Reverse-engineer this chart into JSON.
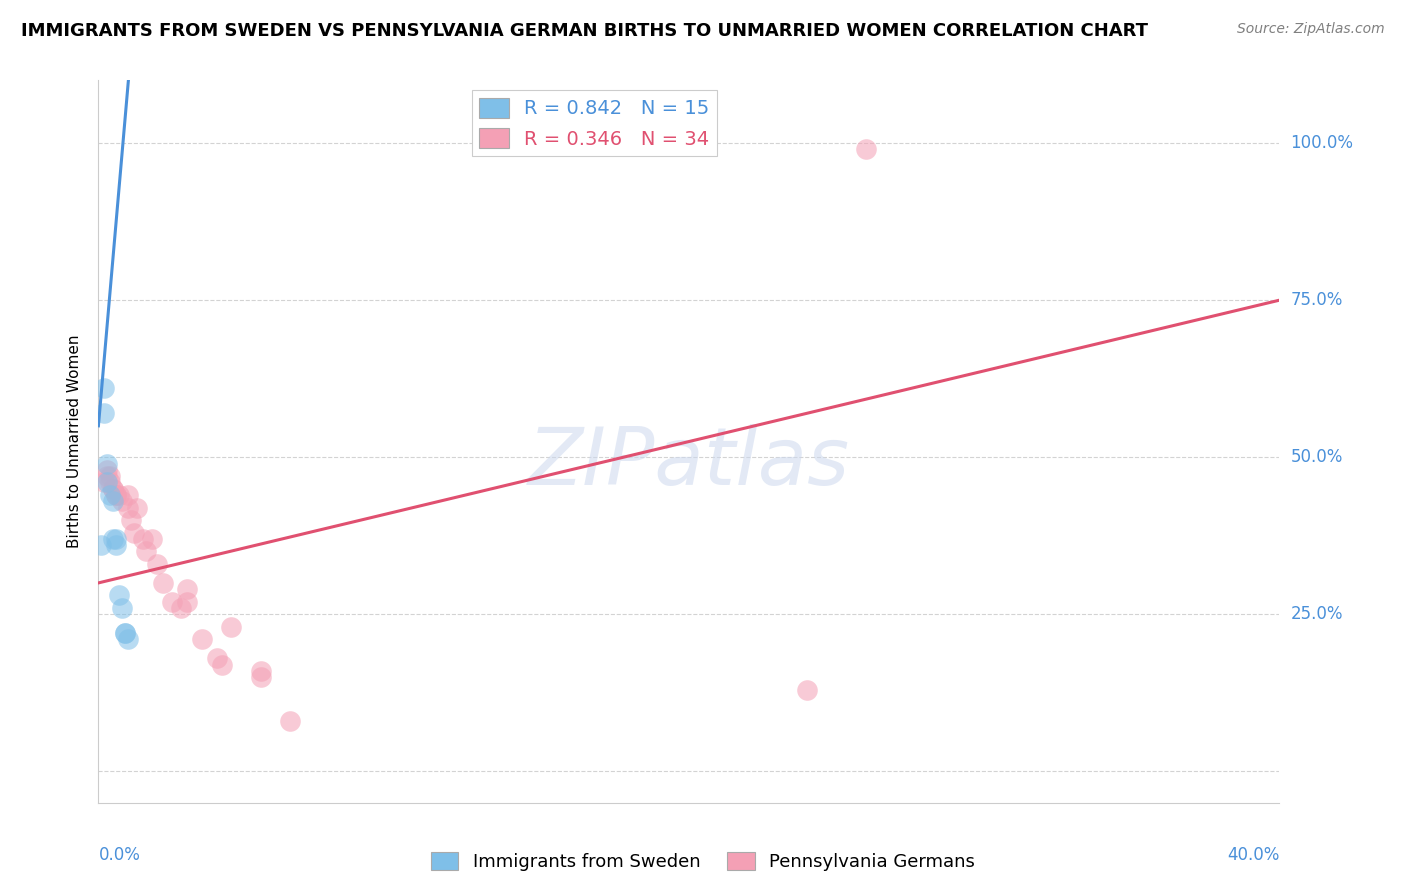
{
  "title": "IMMIGRANTS FROM SWEDEN VS PENNSYLVANIA GERMAN BIRTHS TO UNMARRIED WOMEN CORRELATION CHART",
  "source": "Source: ZipAtlas.com",
  "ylabel": "Births to Unmarried Women",
  "legend_blue": "R = 0.842   N = 15",
  "legend_pink": "R = 0.346   N = 34",
  "legend_label_blue": "Immigrants from Sweden",
  "legend_label_pink": "Pennsylvania Germans",
  "blue_scatter_x": [
    0.001,
    0.002,
    0.002,
    0.003,
    0.003,
    0.004,
    0.005,
    0.005,
    0.006,
    0.006,
    0.007,
    0.008,
    0.009,
    0.009,
    0.01
  ],
  "blue_scatter_y": [
    0.36,
    0.61,
    0.57,
    0.49,
    0.46,
    0.44,
    0.43,
    0.37,
    0.37,
    0.36,
    0.28,
    0.26,
    0.22,
    0.22,
    0.21
  ],
  "pink_scatter_x": [
    0.002,
    0.003,
    0.003,
    0.004,
    0.004,
    0.005,
    0.005,
    0.006,
    0.006,
    0.007,
    0.008,
    0.01,
    0.01,
    0.011,
    0.012,
    0.013,
    0.015,
    0.016,
    0.018,
    0.02,
    0.022,
    0.025,
    0.028,
    0.03,
    0.03,
    0.035,
    0.04,
    0.042,
    0.045,
    0.055,
    0.055,
    0.065,
    0.24,
    0.26
  ],
  "pink_scatter_y": [
    0.46,
    0.48,
    0.47,
    0.47,
    0.46,
    0.45,
    0.45,
    0.44,
    0.44,
    0.44,
    0.43,
    0.44,
    0.42,
    0.4,
    0.38,
    0.42,
    0.37,
    0.35,
    0.37,
    0.33,
    0.3,
    0.27,
    0.26,
    0.27,
    0.29,
    0.21,
    0.18,
    0.17,
    0.23,
    0.16,
    0.15,
    0.08,
    0.13,
    0.99
  ],
  "blue_line_x": [
    0.0,
    0.012
  ],
  "blue_line_y": [
    0.55,
    1.2
  ],
  "pink_line_x": [
    0.0,
    0.4
  ],
  "pink_line_y": [
    0.3,
    0.75
  ],
  "xlim": [
    0.0,
    0.4
  ],
  "ylim": [
    -0.05,
    1.1
  ],
  "ytick_vals": [
    0.0,
    0.25,
    0.5,
    0.75,
    1.0
  ],
  "ytick_labels": [
    "",
    "25.0%",
    "50.0%",
    "75.0%",
    "100.0%"
  ],
  "blue_color": "#7fbfe8",
  "pink_color": "#f4a0b5",
  "blue_line_color": "#4a90d9",
  "pink_line_color": "#e05070",
  "background_color": "#ffffff",
  "watermark_text": "ZIPatlas",
  "title_fontsize": 13,
  "source_fontsize": 10,
  "ylabel_fontsize": 11,
  "scatter_size": 220,
  "scatter_alpha": 0.55
}
